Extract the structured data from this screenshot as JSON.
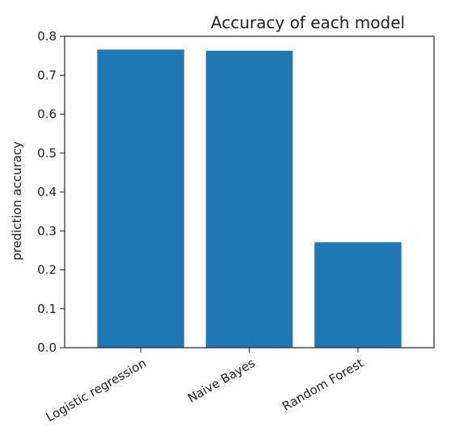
{
  "chart_data": {
    "type": "bar",
    "title": "Accuracy of each model",
    "xlabel": "",
    "ylabel": "prediction accuracy",
    "categories": [
      "Logistic regression",
      "Naive Bayes",
      "Random Forest"
    ],
    "values": [
      0.766,
      0.763,
      0.271
    ],
    "ylim": [
      0,
      0.8
    ],
    "yticks": [
      0.0,
      0.1,
      0.2,
      0.3,
      0.4,
      0.5,
      0.6,
      0.7,
      0.8
    ],
    "ytick_labels": [
      "0.0",
      "0.1",
      "0.2",
      "0.3",
      "0.4",
      "0.5",
      "0.6",
      "0.7",
      "0.8"
    ],
    "bar_color": "#1f77b4",
    "grid": false,
    "legend": false
  }
}
